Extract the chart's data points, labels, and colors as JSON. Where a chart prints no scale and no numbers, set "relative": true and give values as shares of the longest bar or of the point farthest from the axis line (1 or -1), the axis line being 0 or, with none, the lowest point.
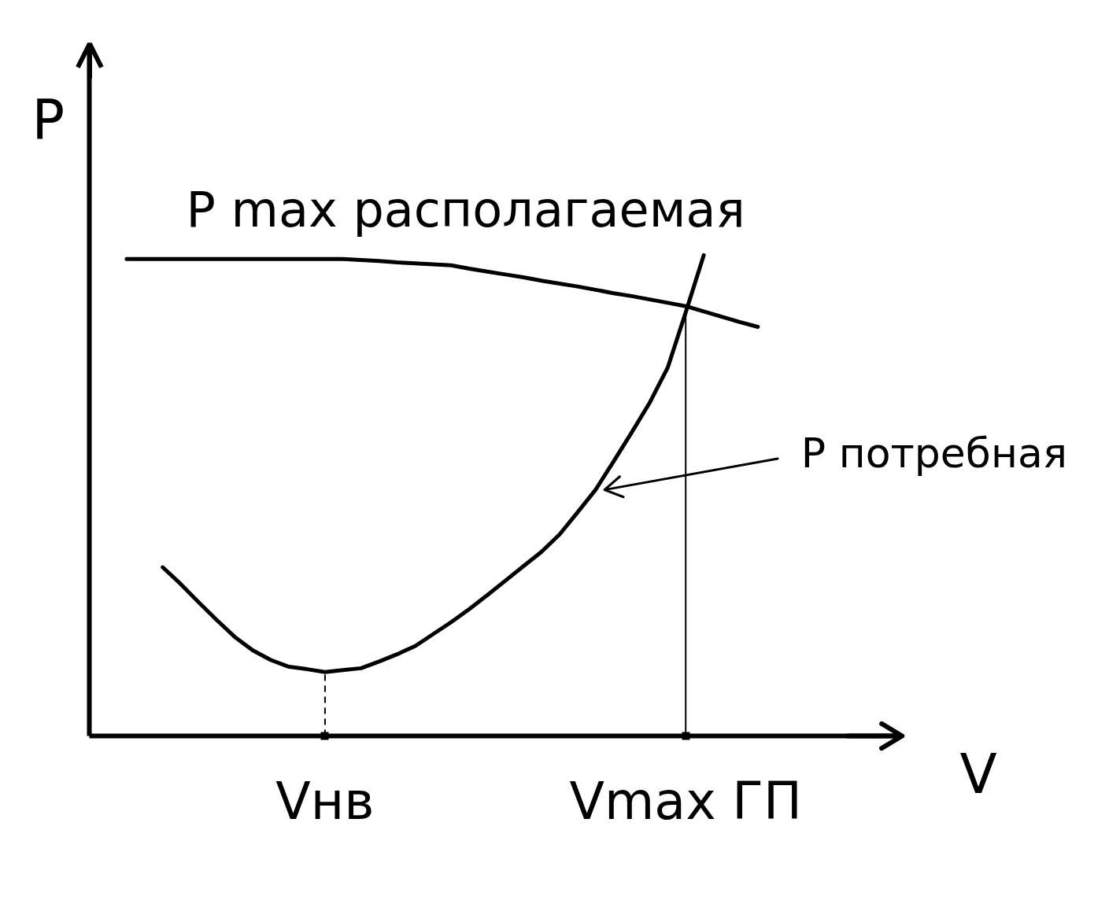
{
  "chart_data": {
    "type": "line",
    "relative": true,
    "xlabel": "V",
    "ylabel": "P",
    "categories": [
      null,
      null,
      null,
      null,
      null,
      null,
      null,
      null,
      null,
      null,
      null,
      "Vнв",
      null,
      null,
      null,
      null,
      null,
      null,
      null,
      null,
      null,
      null,
      null,
      null,
      null,
      null,
      null,
      null,
      null,
      null,
      null,
      "Vmax ГП",
      null,
      null,
      null,
      null
    ],
    "ref_lines": [
      {
        "axis": "x",
        "value": "Vнв",
        "line_style": "dashed"
      },
      {
        "axis": "x",
        "value": "Vmax ГП"
      }
    ],
    "series": [
      {
        "name": "P max располагаемая",
        "color": "#000000",
        "values": [
          0.992,
          0.992,
          0.992,
          0.992,
          0.992,
          0.992,
          0.992,
          0.992,
          0.992,
          0.992,
          0.992,
          0.992,
          0.992,
          0.99,
          0.988,
          0.985,
          0.983,
          0.981,
          0.979,
          0.972,
          0.966,
          0.96,
          0.954,
          0.947,
          0.941,
          0.935,
          0.928,
          0.921,
          0.915,
          0.908,
          0.901,
          0.894,
          0.883,
          0.872,
          0.861,
          0.851
        ]
      },
      {
        "name": "P потребная",
        "color": "#000000",
        "values": [
          null,
          null,
          0.351,
          0.316,
          0.278,
          0.241,
          0.206,
          0.178,
          0.158,
          0.144,
          0.139,
          0.133,
          0.137,
          0.141,
          0.155,
          0.17,
          0.187,
          0.212,
          0.237,
          0.264,
          0.293,
          0.323,
          0.353,
          0.383,
          0.419,
          0.465,
          0.512,
          0.571,
          0.631,
          0.693,
          0.766,
          0.881,
          1.0,
          null,
          null,
          null
        ]
      }
    ]
  }
}
